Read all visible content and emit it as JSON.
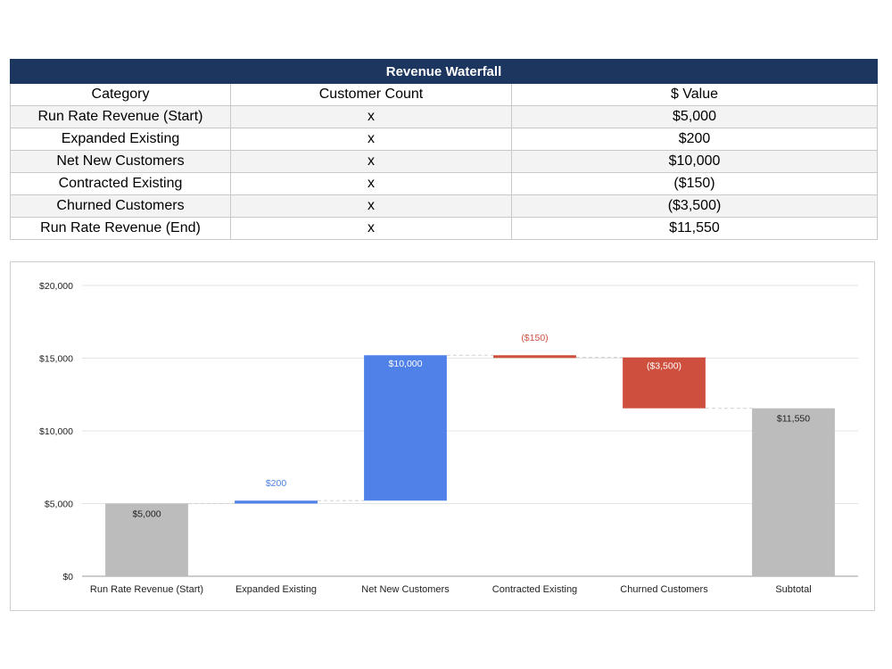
{
  "table": {
    "title": "Revenue Waterfall",
    "headers": [
      "Category",
      "Customer Count",
      "$ Value"
    ],
    "rows": [
      {
        "category": "Run Rate Revenue (Start)",
        "count": "x",
        "value": "$5,000"
      },
      {
        "category": "Expanded Existing",
        "count": "x",
        "value": "$200"
      },
      {
        "category": "Net New Customers",
        "count": "x",
        "value": "$10,000"
      },
      {
        "category": "Contracted Existing",
        "count": "x",
        "value": "($150)"
      },
      {
        "category": "Churned Customers",
        "count": "x",
        "value": "($3,500)"
      },
      {
        "category": "Run Rate Revenue (End)",
        "count": "x",
        "value": "$11,550"
      }
    ]
  },
  "chart_data": {
    "type": "bar",
    "subtype": "waterfall",
    "categories": [
      "Run Rate Revenue (Start)",
      "Expanded Existing",
      "Net New Customers",
      "Contracted Existing",
      "Churned Customers",
      "Subtotal"
    ],
    "values": [
      5000,
      200,
      10000,
      -150,
      -3500,
      11550
    ],
    "kinds": [
      "total",
      "increase",
      "increase",
      "decrease",
      "decrease",
      "total"
    ],
    "data_labels": [
      "$5,000",
      "$200",
      "$10,000",
      "($150)",
      "($3,500)",
      "$11,550"
    ],
    "ylim": [
      0,
      20000
    ],
    "yticks": [
      0,
      5000,
      10000,
      15000,
      20000
    ],
    "ytick_labels": [
      "$0",
      "$5,000",
      "$10,000",
      "$15,000",
      "$20,000"
    ],
    "grid": true,
    "legend": "none",
    "title": "",
    "xlabel": "",
    "ylabel": "",
    "colors": {
      "total": "#bcbcbc",
      "increase": "#4f81e8",
      "decrease": "#cf4f3f",
      "increase_label": "#4a7fe0",
      "decrease_label": "#cf4f3f",
      "total_label": "#222222",
      "grid": "#e3e3e3",
      "connector": "#d0d0d0",
      "axis_text": "#222222"
    }
  }
}
